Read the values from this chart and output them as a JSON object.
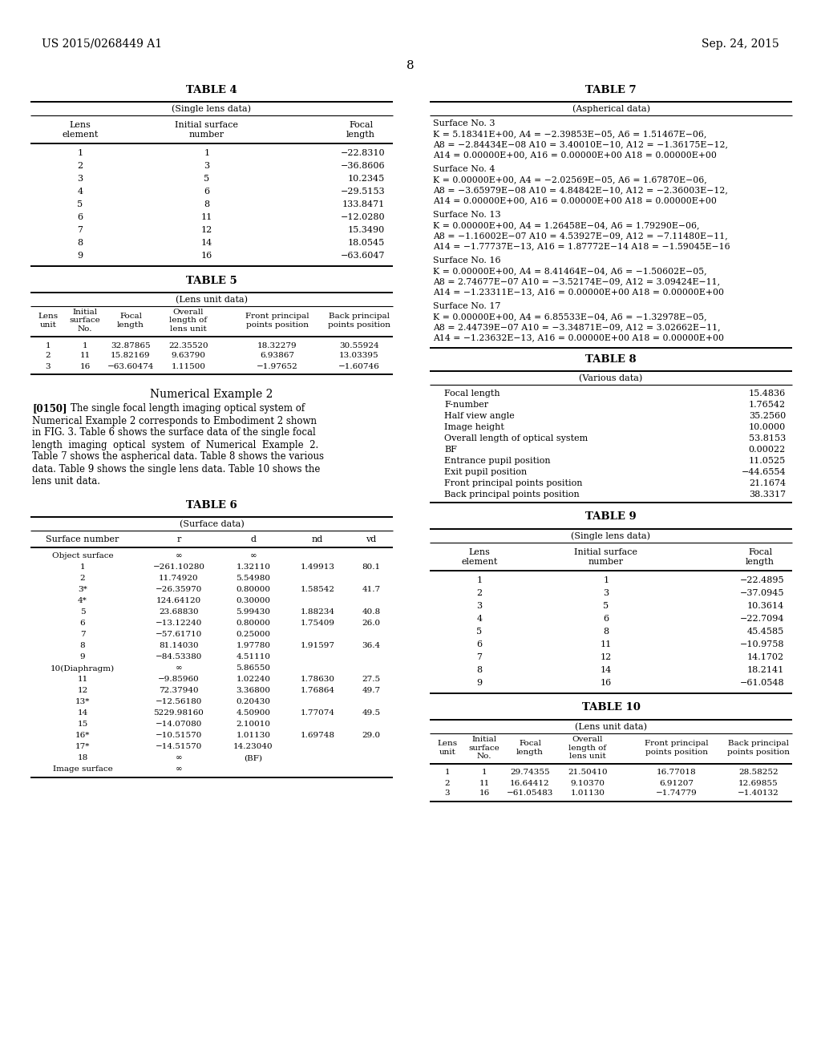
{
  "header_left": "US 2015/0268449 A1",
  "header_right": "Sep. 24, 2015",
  "page_number": "8",
  "background_color": "#ffffff",
  "text_color": "#000000",
  "table4_title": "TABLE 4",
  "table4_subtitle": "(Single lens data)",
  "table4_data": [
    [
      "1",
      "1",
      "−22.8310"
    ],
    [
      "2",
      "3",
      "−36.8606"
    ],
    [
      "3",
      "5",
      "10.2345"
    ],
    [
      "4",
      "6",
      "−29.5153"
    ],
    [
      "5",
      "8",
      "133.8471"
    ],
    [
      "6",
      "11",
      "−12.0280"
    ],
    [
      "7",
      "12",
      "15.3490"
    ],
    [
      "8",
      "14",
      "18.0545"
    ],
    [
      "9",
      "16",
      "−63.6047"
    ]
  ],
  "table5_title": "TABLE 5",
  "table5_subtitle": "(Lens unit data)",
  "table5_data": [
    [
      "1",
      "1",
      "32.87865",
      "22.35520",
      "18.32279",
      "30.55924"
    ],
    [
      "2",
      "11",
      "15.82169",
      "9.63790",
      "6.93867",
      "13.03395"
    ],
    [
      "3",
      "16",
      "−63.60474",
      "1.11500",
      "−1.97652",
      "−1.60746"
    ]
  ],
  "table6_title": "TABLE 6",
  "table6_subtitle": "(Surface data)",
  "table6_data": [
    [
      "Object surface",
      "∞",
      "∞",
      "",
      ""
    ],
    [
      "1",
      "−261.10280",
      "1.32110",
      "1.49913",
      "80.1"
    ],
    [
      "2",
      "11.74920",
      "5.54980",
      "",
      ""
    ],
    [
      "3*",
      "−26.35970",
      "0.80000",
      "1.58542",
      "41.7"
    ],
    [
      "4*",
      "124.64120",
      "0.30000",
      "",
      ""
    ],
    [
      "5",
      "23.68830",
      "5.99430",
      "1.88234",
      "40.8"
    ],
    [
      "6",
      "−13.12240",
      "0.80000",
      "1.75409",
      "26.0"
    ],
    [
      "7",
      "−57.61710",
      "0.25000",
      "",
      ""
    ],
    [
      "8",
      "81.14030",
      "1.97780",
      "1.91597",
      "36.4"
    ],
    [
      "9",
      "−84.53380",
      "4.51110",
      "",
      ""
    ],
    [
      "10(Diaphragm)",
      "∞",
      "5.86550",
      "",
      ""
    ],
    [
      "11",
      "−9.85960",
      "1.02240",
      "1.78630",
      "27.5"
    ],
    [
      "12",
      "72.37940",
      "3.36800",
      "1.76864",
      "49.7"
    ],
    [
      "13*",
      "−12.56180",
      "0.20430",
      "",
      ""
    ],
    [
      "14",
      "5229.98160",
      "4.50900",
      "1.77074",
      "49.5"
    ],
    [
      "15",
      "−14.07080",
      "2.10010",
      "",
      ""
    ],
    [
      "16*",
      "−10.51570",
      "1.01130",
      "1.69748",
      "29.0"
    ],
    [
      "17*",
      "−14.51570",
      "14.23040",
      "",
      ""
    ],
    [
      "18",
      "∞",
      "(BF)",
      "",
      ""
    ],
    [
      "Image surface",
      "∞",
      "",
      "",
      ""
    ]
  ],
  "table7_title": "TABLE 7",
  "table7_subtitle": "(Aspherical data)",
  "table7_blocks": [
    {
      "label": "Surface No. 3",
      "lines": [
        "K = 5.18341E+00, A4 = −2.39853E−05, A6 = 1.51467E−06,",
        "A8 = −2.84434E−08 A10 = 3.40010E−10, A12 = −1.36175E−12,",
        "A14 = 0.00000E+00, A16 = 0.00000E+00 A18 = 0.00000E+00"
      ]
    },
    {
      "label": "Surface No. 4",
      "lines": [
        "K = 0.00000E+00, A4 = −2.02569E−05, A6 = 1.67870E−06,",
        "A8 = −3.65979E−08 A10 = 4.84842E−10, A12 = −2.36003E−12,",
        "A14 = 0.00000E+00, A16 = 0.00000E+00 A18 = 0.00000E+00"
      ]
    },
    {
      "label": "Surface No. 13",
      "lines": [
        "K = 0.00000E+00, A4 = 1.26458E−04, A6 = 1.79290E−06,",
        "A8 = −1.16002E−07 A10 = 4.53927E−09, A12 = −7.11480E−11,",
        "A14 = −1.77737E−13, A16 = 1.87772E−14 A18 = −1.59045E−16"
      ]
    },
    {
      "label": "Surface No. 16",
      "lines": [
        "K = 0.00000E+00, A4 = 8.41464E−04, A6 = −1.50602E−05,",
        "A8 = 2.74677E−07 A10 = −3.52174E−09, A12 = 3.09424E−11,",
        "A14 = −1.23311E−13, A16 = 0.00000E+00 A18 = 0.00000E+00"
      ]
    },
    {
      "label": "Surface No. 17",
      "lines": [
        "K = 0.00000E+00, A4 = 6.85533E−04, A6 = −1.32978E−05,",
        "A8 = 2.44739E−07 A10 = −3.34871E−09, A12 = 3.02662E−11,",
        "A14 = −1.23632E−13, A16 = 0.00000E+00 A18 = 0.00000E+00"
      ]
    }
  ],
  "table8_title": "TABLE 8",
  "table8_subtitle": "(Various data)",
  "table8_data": [
    [
      "Focal length",
      "15.4836"
    ],
    [
      "F-number",
      "1.76542"
    ],
    [
      "Half view angle",
      "35.2560"
    ],
    [
      "Image height",
      "10.0000"
    ],
    [
      "Overall length of optical system",
      "53.8153"
    ],
    [
      "BF",
      "0.00022"
    ],
    [
      "Entrance pupil position",
      "11.0525"
    ],
    [
      "Exit pupil position",
      "−44.6554"
    ],
    [
      "Front principal points position",
      "21.1674"
    ],
    [
      "Back principal points position",
      "38.3317"
    ]
  ],
  "table9_title": "TABLE 9",
  "table9_subtitle": "(Single lens data)",
  "table9_data": [
    [
      "1",
      "1",
      "−22.4895"
    ],
    [
      "2",
      "3",
      "−37.0945"
    ],
    [
      "3",
      "5",
      "10.3614"
    ],
    [
      "4",
      "6",
      "−22.7094"
    ],
    [
      "5",
      "8",
      "45.4585"
    ],
    [
      "6",
      "11",
      "−10.9758"
    ],
    [
      "7",
      "12",
      "14.1702"
    ],
    [
      "8",
      "14",
      "18.2141"
    ],
    [
      "9",
      "16",
      "−61.0548"
    ]
  ],
  "table10_title": "TABLE 10",
  "table10_subtitle": "(Lens unit data)",
  "table10_data": [
    [
      "1",
      "1",
      "29.74355",
      "21.50410",
      "16.77018",
      "28.58252"
    ],
    [
      "2",
      "11",
      "16.64412",
      "9.10370",
      "6.91207",
      "12.69855"
    ],
    [
      "3",
      "16",
      "−61.05483",
      "1.01130",
      "−1.74779",
      "−1.40132"
    ]
  ],
  "numerical_example2_title": "Numerical Example 2",
  "para_lines": [
    "[0150]    The single focal length imaging optical system of",
    "Numerical Example 2 corresponds to Embodiment 2 shown",
    "in FIG. 3. Table 6 shows the surface data of the single focal",
    "length  imaging  optical  system  of  Numerical  Example  2.",
    "Table 7 shows the aspherical data. Table 8 shows the various",
    "data. Table 9 shows the single lens data. Table 10 shows the",
    "lens unit data."
  ]
}
